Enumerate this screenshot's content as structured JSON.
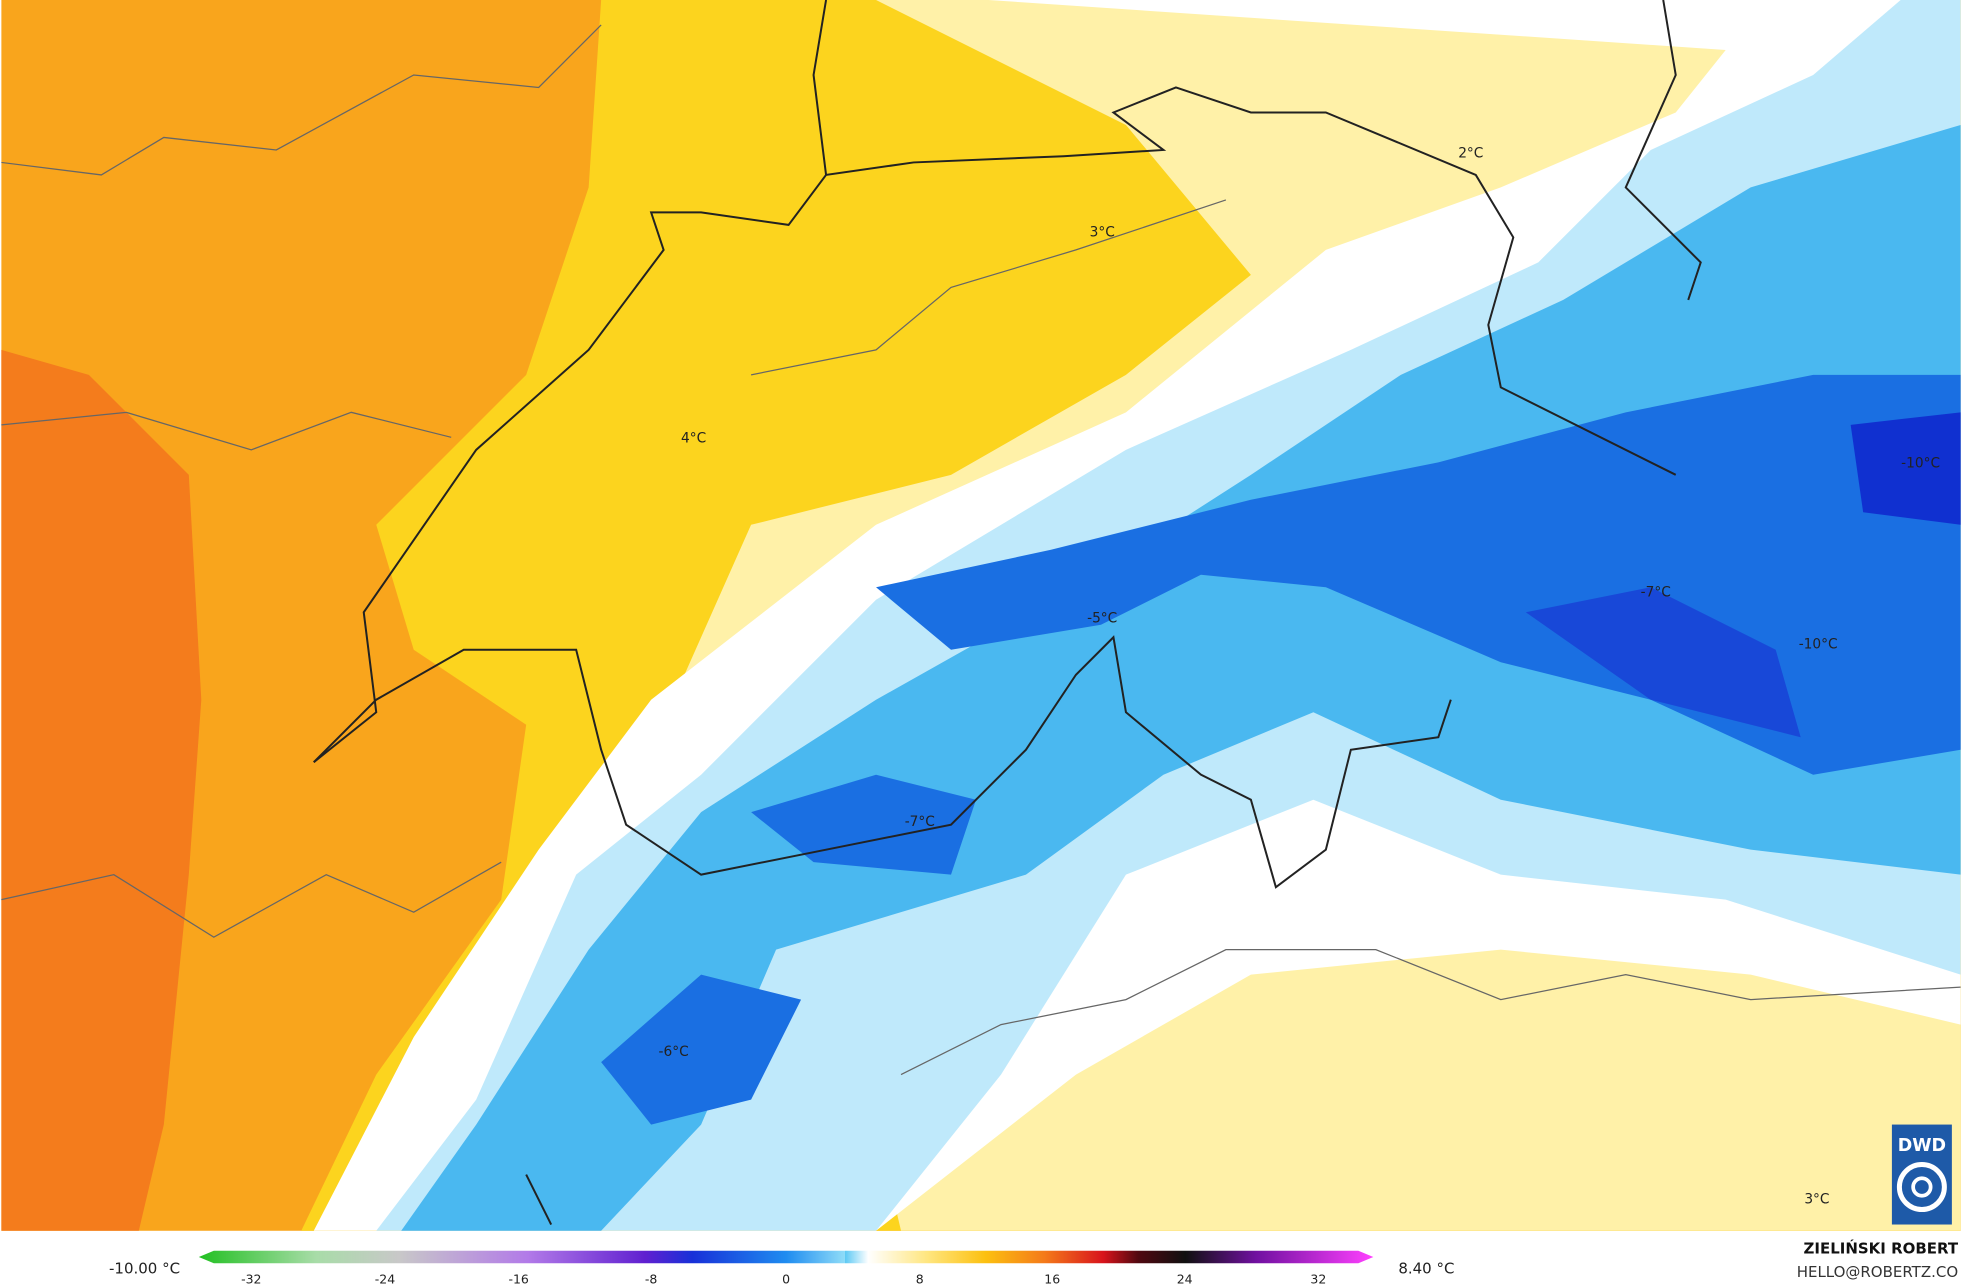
{
  "map": {
    "labels": [
      "2°C",
      "3°C",
      "4°C",
      "-5°C",
      "-7°C",
      "-10°C",
      "-7°C",
      "-10°C",
      "-6°C",
      "3°C"
    ],
    "badge": "DWD"
  },
  "legend": {
    "min_label": "-10.00 °C",
    "max_label": "8.40 °C",
    "ticks": [
      "-32",
      "-24",
      "-16",
      "-8",
      "0",
      "8",
      "16",
      "24",
      "32"
    ]
  },
  "credit": {
    "name": "ZIELIŃSKI ROBERT",
    "contact": "HELLO@ROBERTZ.CO"
  }
}
